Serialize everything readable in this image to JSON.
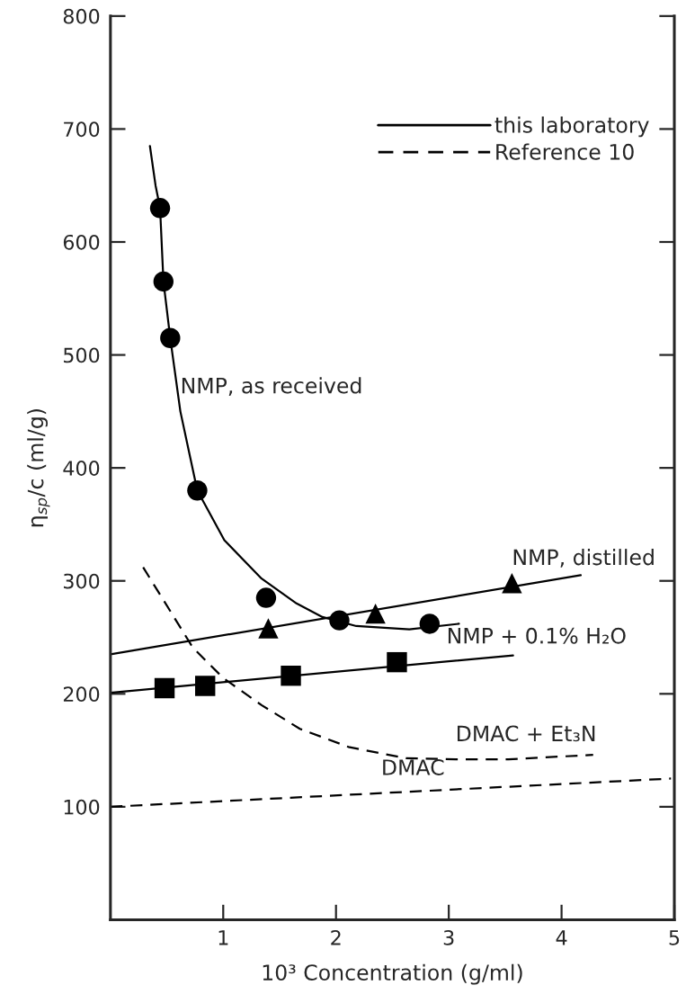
{
  "chart_data": {
    "type": "line",
    "xlabel": "10³ Concentration (g/ml)",
    "ylabel": "η$_{sp}$/c (ml/g)",
    "xlim": [
      0,
      5
    ],
    "ylim": [
      0,
      800
    ],
    "xticks": [
      1,
      2,
      3,
      4,
      5
    ],
    "yticks": [
      100,
      200,
      300,
      400,
      500,
      600,
      700,
      800
    ],
    "grid": false,
    "series": [
      {
        "color": "#000000",
        "line_style": "solid",
        "marker": "none",
        "x": [
          0.35,
          0.4,
          0.44,
          0.47,
          0.53,
          0.62,
          0.77,
          0.83,
          1.01,
          1.34,
          1.65,
          1.88,
          2.18,
          2.65,
          3.09
        ],
        "values": [
          685,
          650,
          630,
          565,
          515,
          450,
          380,
          369,
          336,
          302,
          280,
          268,
          260,
          257,
          262
        ]
      },
      {
        "color": "#000000",
        "line_style": "solid",
        "marker": "none",
        "x": [
          0,
          4.17
        ],
        "values": [
          235,
          305
        ]
      },
      {
        "color": "#000000",
        "line_style": "solid",
        "marker": "none",
        "x": [
          0,
          3.57
        ],
        "values": [
          201,
          234
        ]
      },
      {
        "color": "#000000",
        "line_style": "dashed",
        "marker": "none",
        "x": [
          0.29,
          0.73,
          1.0,
          1.34,
          1.68,
          2.11,
          2.62,
          3.06,
          3.53,
          4.28
        ],
        "values": [
          312,
          241,
          214,
          190,
          169,
          153,
          143,
          142,
          142,
          146
        ]
      },
      {
        "color": "#000000",
        "line_style": "dashed",
        "marker": "none",
        "x": [
          0,
          4.97
        ],
        "values": [
          100,
          125
        ]
      },
      {
        "type": "scatter",
        "color": "#000000",
        "marker": "circle",
        "x": [
          0.44,
          0.47,
          0.53,
          0.77,
          1.38,
          2.03,
          2.83
        ],
        "values": [
          630,
          565,
          515,
          380,
          285,
          265,
          262
        ]
      },
      {
        "type": "scatter",
        "color": "#000000",
        "marker": "triangle",
        "x": [
          1.4,
          2.35,
          3.56
        ],
        "values": [
          258,
          271,
          298
        ]
      },
      {
        "type": "scatter",
        "color": "#000000",
        "marker": "square",
        "x": [
          0.48,
          0.84,
          1.6,
          2.54
        ],
        "values": [
          205,
          207,
          216,
          228
        ]
      }
    ],
    "annotations": [
      "this laboratory",
      "Reference 10",
      {
        "text": "NMP, as received",
        "x": 0.62,
        "y": 450
      },
      {
        "text": "NMP, distilled",
        "x": 3.56,
        "y": 298
      },
      {
        "text": "NMP + 0.1% H₂O",
        "x": 2.98,
        "y": 228.5
      },
      {
        "text": "DMAC + Et₃N",
        "x": 3.06,
        "y": 142
      },
      {
        "text": "DMAC",
        "x": 2.4,
        "y": 112
      }
    ]
  }
}
